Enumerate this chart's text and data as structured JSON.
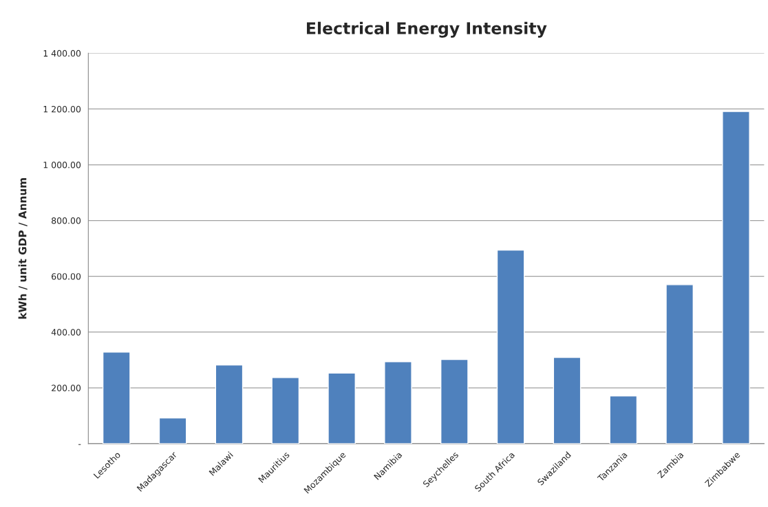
{
  "chart_data": {
    "type": "bar",
    "title": "Electrical Energy Intensity",
    "ylabel": "kWh / unit GDP / Annum",
    "categories": [
      "Lesotho",
      "Madagascar",
      "Malawi",
      "Mauritius",
      "Mozambique",
      "Namibia",
      "Seychelles",
      "South Africa",
      "Swaziland",
      "Tanzania",
      "Zambia",
      "Zimbabwe"
    ],
    "values": [
      328,
      92,
      282,
      237,
      253,
      294,
      302,
      694,
      309,
      171,
      570,
      1191
    ],
    "color": "#4f81bd",
    "ylim": [
      0,
      1400
    ],
    "yticks": [
      {
        "value": 0,
        "label": "-"
      },
      {
        "value": 200,
        "label": "200.00"
      },
      {
        "value": 400,
        "label": "400.00"
      },
      {
        "value": 600,
        "label": "600.00"
      },
      {
        "value": 800,
        "label": "800.00"
      },
      {
        "value": 1000,
        "label": "1 000.00"
      },
      {
        "value": 1200,
        "label": "1 200.00"
      },
      {
        "value": 1400,
        "label": "1 400.00"
      }
    ],
    "grid": "y"
  }
}
